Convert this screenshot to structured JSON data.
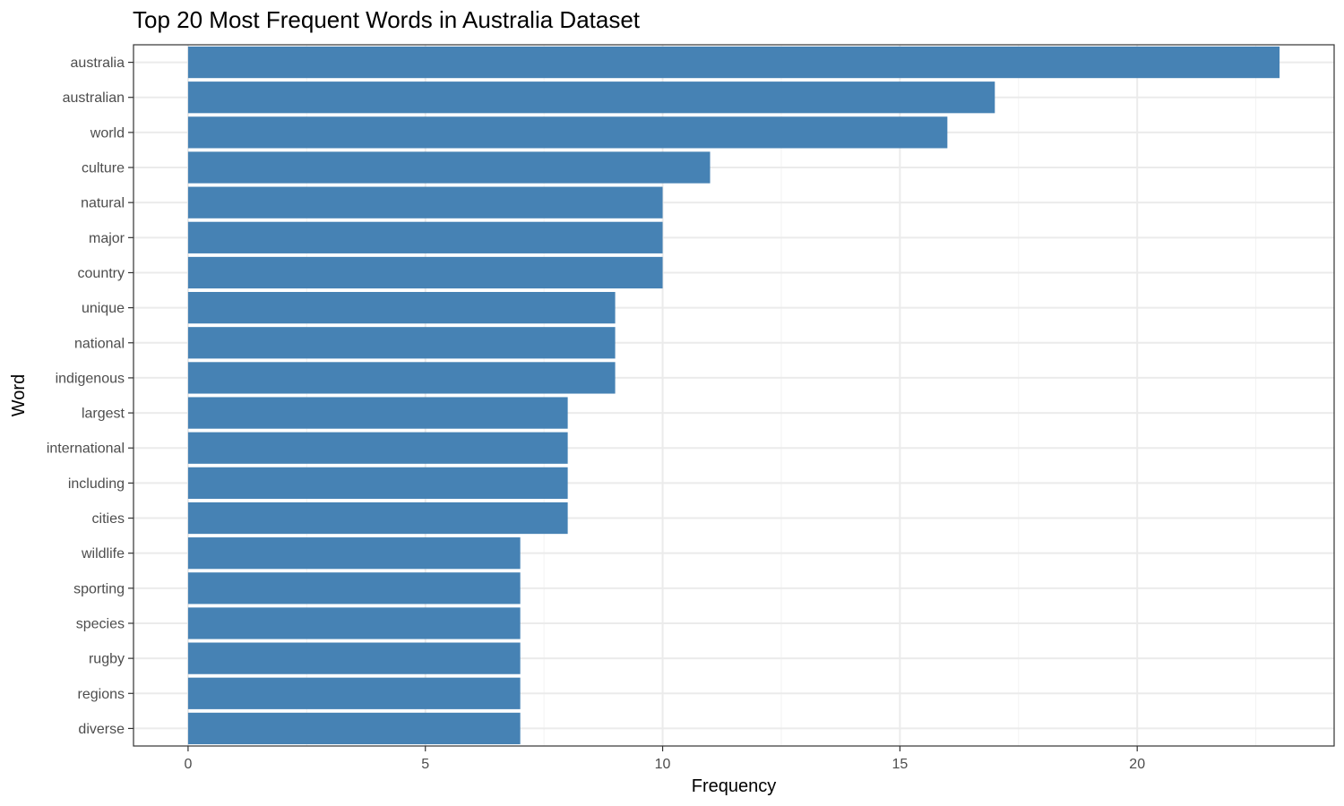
{
  "chart_data": {
    "type": "bar",
    "orientation": "horizontal",
    "title": "Top 20 Most Frequent Words in Australia Dataset",
    "xlabel": "Frequency",
    "ylabel": "Word",
    "categories": [
      "australia",
      "australian",
      "world",
      "culture",
      "natural",
      "major",
      "country",
      "unique",
      "national",
      "indigenous",
      "largest",
      "international",
      "including",
      "cities",
      "wildlife",
      "sporting",
      "species",
      "rugby",
      "regions",
      "diverse"
    ],
    "values": [
      23,
      17,
      16,
      11,
      10,
      10,
      10,
      9,
      9,
      9,
      8,
      8,
      8,
      8,
      7,
      7,
      7,
      7,
      7,
      7
    ],
    "xlim": [
      -1.15,
      24.15
    ],
    "xticks": [
      0,
      5,
      10,
      15,
      20
    ],
    "xtick_labels": [
      "0",
      "5",
      "10",
      "15",
      "20"
    ],
    "grid": true,
    "bar_color": "#4682B4"
  }
}
